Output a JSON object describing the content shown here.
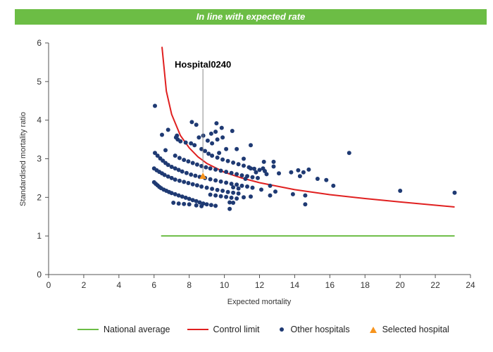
{
  "banner": {
    "text": "In line with expected rate",
    "color": "#6cbd45"
  },
  "legend": {
    "national_average": "National average",
    "control_limit": "Control limit",
    "other_hospitals": "Other hospitals",
    "selected_hospital": "Selected hospital"
  },
  "chart_data": {
    "type": "scatter",
    "title": "",
    "xlabel": "Expected mortality",
    "ylabel": "Standardised mortality ratio",
    "xlim": [
      0,
      24
    ],
    "ylim": [
      0,
      6
    ],
    "xticks": [
      0,
      2,
      4,
      6,
      8,
      10,
      12,
      14,
      16,
      18,
      20,
      22,
      24
    ],
    "yticks": [
      0,
      1,
      2,
      3,
      4,
      5,
      6
    ],
    "grid": false,
    "legend_position": "bottom",
    "colors": {
      "national_average": "#6cbd45",
      "control_limit": "#e02020",
      "other_hospitals": "#1f3a73",
      "selected_hospital": "#f7941d"
    },
    "national_average": {
      "name": "National average",
      "x": [
        6.4,
        23.1
      ],
      "y": [
        1.0,
        1.0
      ]
    },
    "control_limit": {
      "name": "Control limit",
      "x": [
        6.45,
        6.7,
        7.0,
        7.5,
        8.0,
        8.5,
        9.0,
        10.0,
        11.0,
        12.0,
        14.0,
        16.0,
        18.0,
        20.0,
        23.1
      ],
      "y": [
        5.9,
        4.75,
        4.15,
        3.6,
        3.28,
        3.05,
        2.88,
        2.65,
        2.5,
        2.38,
        2.2,
        2.07,
        1.97,
        1.88,
        1.75
      ]
    },
    "selected_hospital": {
      "name": "Selected hospital",
      "label": "Hospital0240",
      "x": 8.78,
      "y": 2.55
    },
    "other_hospitals": {
      "name": "Other hospitals",
      "points": [
        [
          6.0,
          2.39
        ],
        [
          6.1,
          2.35
        ],
        [
          6.2,
          2.31
        ],
        [
          6.3,
          2.27
        ],
        [
          6.4,
          2.24
        ],
        [
          6.55,
          2.2
        ],
        [
          6.7,
          2.17
        ],
        [
          6.85,
          2.14
        ],
        [
          7.0,
          2.11
        ],
        [
          7.2,
          2.08
        ],
        [
          7.4,
          2.05
        ],
        [
          7.6,
          2.02
        ],
        [
          7.8,
          1.99
        ],
        [
          8.0,
          1.96
        ],
        [
          8.2,
          1.93
        ],
        [
          8.4,
          1.9
        ],
        [
          8.6,
          1.87
        ],
        [
          8.8,
          1.84
        ],
        [
          9.0,
          1.82
        ],
        [
          9.25,
          1.8
        ],
        [
          9.5,
          1.78
        ],
        [
          7.1,
          1.86
        ],
        [
          7.4,
          1.84
        ],
        [
          7.7,
          1.83
        ],
        [
          8.0,
          1.82
        ],
        [
          8.4,
          1.79
        ],
        [
          8.7,
          1.77
        ],
        [
          6.0,
          2.75
        ],
        [
          6.15,
          2.7
        ],
        [
          6.3,
          2.66
        ],
        [
          6.45,
          2.62
        ],
        [
          6.6,
          2.58
        ],
        [
          6.8,
          2.54
        ],
        [
          7.0,
          2.5
        ],
        [
          7.2,
          2.46
        ],
        [
          7.45,
          2.43
        ],
        [
          7.7,
          2.4
        ],
        [
          7.95,
          2.37
        ],
        [
          8.2,
          2.34
        ],
        [
          8.45,
          2.31
        ],
        [
          8.7,
          2.28
        ],
        [
          9.0,
          2.25
        ],
        [
          9.3,
          2.22
        ],
        [
          9.6,
          2.19
        ],
        [
          9.9,
          2.17
        ],
        [
          10.2,
          2.14
        ],
        [
          10.5,
          2.12
        ],
        [
          10.8,
          2.1
        ],
        [
          9.2,
          2.07
        ],
        [
          9.5,
          2.05
        ],
        [
          9.8,
          2.03
        ],
        [
          10.1,
          2.01
        ],
        [
          10.4,
          1.99
        ],
        [
          10.7,
          1.97
        ],
        [
          10.3,
          1.87
        ],
        [
          10.5,
          1.86
        ],
        [
          10.3,
          1.7
        ],
        [
          6.05,
          3.15
        ],
        [
          6.2,
          3.08
        ],
        [
          6.35,
          3.01
        ],
        [
          6.5,
          2.95
        ],
        [
          6.65,
          2.89
        ],
        [
          6.8,
          2.84
        ],
        [
          7.0,
          2.79
        ],
        [
          7.2,
          2.75
        ],
        [
          7.4,
          2.71
        ],
        [
          7.6,
          2.67
        ],
        [
          7.85,
          2.63
        ],
        [
          8.1,
          2.59
        ],
        [
          8.35,
          2.56
        ],
        [
          8.6,
          2.53
        ],
        [
          8.9,
          2.5
        ],
        [
          9.2,
          2.47
        ],
        [
          9.5,
          2.44
        ],
        [
          9.8,
          2.41
        ],
        [
          10.1,
          2.38
        ],
        [
          10.4,
          2.35
        ],
        [
          10.7,
          2.33
        ],
        [
          11.0,
          2.3
        ],
        [
          11.3,
          2.28
        ],
        [
          11.6,
          2.25
        ],
        [
          10.5,
          2.26
        ],
        [
          10.8,
          2.23
        ],
        [
          7.2,
          3.08
        ],
        [
          7.45,
          3.02
        ],
        [
          7.7,
          2.97
        ],
        [
          7.95,
          2.93
        ],
        [
          8.2,
          2.89
        ],
        [
          8.45,
          2.85
        ],
        [
          8.7,
          2.81
        ],
        [
          8.95,
          2.78
        ],
        [
          9.2,
          2.75
        ],
        [
          9.5,
          2.72
        ],
        [
          9.8,
          2.69
        ],
        [
          10.1,
          2.66
        ],
        [
          10.4,
          2.63
        ],
        [
          10.7,
          2.6
        ],
        [
          11.0,
          2.57
        ],
        [
          11.3,
          2.55
        ],
        [
          11.6,
          2.52
        ],
        [
          11.9,
          2.5
        ],
        [
          8.7,
          3.25
        ],
        [
          8.9,
          3.2
        ],
        [
          9.1,
          3.13
        ],
        [
          9.3,
          3.08
        ],
        [
          9.6,
          3.03
        ],
        [
          9.9,
          2.98
        ],
        [
          10.2,
          2.94
        ],
        [
          10.5,
          2.9
        ],
        [
          10.8,
          2.86
        ],
        [
          11.1,
          2.82
        ],
        [
          11.4,
          2.78
        ],
        [
          11.7,
          2.74
        ],
        [
          12.0,
          2.71
        ],
        [
          12.3,
          2.68
        ],
        [
          7.25,
          3.55
        ],
        [
          7.5,
          3.45
        ],
        [
          7.8,
          3.42
        ],
        [
          8.1,
          3.4
        ],
        [
          8.3,
          3.35
        ],
        [
          8.55,
          3.55
        ],
        [
          8.8,
          3.6
        ],
        [
          9.05,
          3.47
        ],
        [
          9.3,
          3.4
        ],
        [
          9.6,
          3.5
        ],
        [
          9.9,
          3.55
        ],
        [
          6.05,
          4.37
        ],
        [
          6.45,
          3.62
        ],
        [
          6.8,
          3.75
        ],
        [
          6.65,
          3.22
        ],
        [
          7.35,
          3.5
        ],
        [
          7.3,
          3.6
        ],
        [
          8.15,
          3.95
        ],
        [
          8.4,
          3.88
        ],
        [
          9.25,
          3.65
        ],
        [
          9.55,
          3.92
        ],
        [
          9.85,
          3.8
        ],
        [
          9.5,
          3.7
        ],
        [
          10.45,
          3.72
        ],
        [
          9.7,
          3.15
        ],
        [
          10.1,
          3.25
        ],
        [
          10.7,
          3.25
        ],
        [
          11.1,
          3.0
        ],
        [
          11.5,
          3.35
        ],
        [
          12.2,
          2.75
        ],
        [
          12.25,
          2.92
        ],
        [
          12.8,
          2.92
        ],
        [
          12.4,
          2.6
        ],
        [
          12.8,
          2.8
        ],
        [
          13.1,
          2.62
        ],
        [
          12.1,
          2.2
        ],
        [
          12.6,
          2.3
        ],
        [
          12.6,
          2.05
        ],
        [
          12.9,
          2.15
        ],
        [
          11.5,
          2.75
        ],
        [
          11.8,
          2.65
        ],
        [
          11.2,
          2.48
        ],
        [
          11.5,
          2.02
        ],
        [
          11.1,
          2.0
        ],
        [
          13.8,
          2.65
        ],
        [
          14.2,
          2.7
        ],
        [
          14.3,
          2.55
        ],
        [
          14.8,
          2.72
        ],
        [
          14.5,
          2.65
        ],
        [
          13.9,
          2.08
        ],
        [
          14.6,
          2.05
        ],
        [
          14.6,
          1.82
        ],
        [
          15.3,
          2.48
        ],
        [
          15.8,
          2.45
        ],
        [
          16.2,
          2.3
        ],
        [
          17.1,
          3.15
        ],
        [
          20.0,
          2.17
        ],
        [
          23.1,
          2.12
        ]
      ]
    }
  }
}
